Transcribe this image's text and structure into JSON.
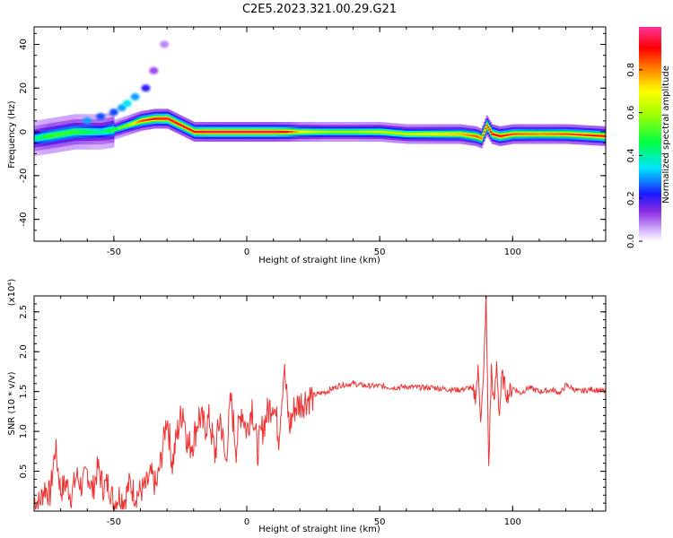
{
  "title": "C2E5.2023.321.00.29.G21",
  "colors": {
    "snr_line": "#ee3333",
    "axis": "#000000",
    "background": "#ffffff"
  },
  "chart_data": [
    {
      "type": "heatmap",
      "title": "C2E5.2023.321.00.29.G21",
      "xlabel": "Height of straight line (km)",
      "ylabel": "Frequency (Hz)",
      "xlim": [
        -80,
        135
      ],
      "ylim": [
        -50,
        48
      ],
      "xticks": [
        -50,
        0,
        50,
        100
      ],
      "xtick_labels": [
        "-50",
        "0",
        "50",
        "100"
      ],
      "yticks": [
        -40,
        -20,
        0,
        20,
        40
      ],
      "ytick_labels": [
        "-40",
        "-20",
        "0",
        "20",
        "40"
      ],
      "colorbar": {
        "label": "Normalized spectral amplitude",
        "range": [
          0,
          1
        ],
        "ticks": [
          0.0,
          0.2,
          0.4,
          0.6,
          0.8
        ],
        "tick_labels": [
          "0.0",
          "0.2",
          "0.4",
          "0.6",
          "0.8"
        ],
        "colormap": "rainbow (white-violet-blue-cyan-green-yellow-orange-red-magenta)"
      },
      "ridge": {
        "x": [
          -80,
          -75,
          -70,
          -65,
          -60,
          -55,
          -50,
          -45,
          -40,
          -35,
          -30,
          -25,
          -20,
          -15,
          -10,
          -5,
          0,
          5,
          10,
          15,
          20,
          30,
          40,
          50,
          60,
          70,
          80,
          86,
          88,
          90,
          92,
          95,
          100,
          110,
          120,
          135
        ],
        "y": [
          -3,
          -2,
          -1,
          0,
          0,
          0,
          1,
          3,
          5,
          6,
          6,
          3,
          0,
          0,
          0,
          0,
          0,
          0,
          0,
          0,
          0,
          0,
          0,
          0,
          -1,
          -1,
          -1,
          -2,
          -3,
          3,
          -1,
          -2,
          -1,
          -1,
          -1,
          -2
        ],
        "amplitude": [
          0.4,
          0.5,
          0.5,
          0.5,
          0.45,
          0.4,
          0.5,
          0.6,
          0.85,
          0.9,
          0.95,
          0.9,
          0.9,
          0.95,
          0.95,
          0.95,
          0.95,
          0.95,
          0.95,
          0.9,
          0.7,
          0.6,
          0.6,
          0.65,
          0.65,
          0.7,
          0.75,
          0.85,
          0.8,
          0.85,
          0.9,
          0.9,
          0.85,
          0.8,
          0.85,
          0.9
        ]
      },
      "side_trail": {
        "x": [
          -60,
          -55,
          -50,
          -47,
          -45,
          -42,
          -38,
          -35,
          -31
        ],
        "y": [
          5,
          7,
          9,
          11,
          13,
          16,
          20,
          28,
          40
        ],
        "amplitude": [
          0.3,
          0.25,
          0.25,
          0.3,
          0.35,
          0.3,
          0.2,
          0.12,
          0.08
        ]
      }
    },
    {
      "type": "line",
      "xlabel": "Height of straight line (km)",
      "ylabel": "SNR (10 * v/v)",
      "y_scale_label": "(x10⁴)",
      "xlim": [
        -80,
        135
      ],
      "ylim": [
        0,
        2.7
      ],
      "xticks": [
        -50,
        0,
        50,
        100
      ],
      "xtick_labels": [
        "-50",
        "0",
        "50",
        "100"
      ],
      "yticks": [
        0.5,
        1.0,
        1.5,
        2.0,
        2.5
      ],
      "ytick_labels": [
        "0.5",
        "1.0",
        "1.5",
        "2.0",
        "2.5"
      ],
      "series": [
        {
          "x": [
            -80,
            -78,
            -76,
            -74,
            -72,
            -70,
            -68,
            -66,
            -64,
            -62,
            -60,
            -58,
            -56,
            -54,
            -52,
            -50,
            -48,
            -46,
            -44,
            -42,
            -40,
            -38,
            -36,
            -34,
            -32,
            -30,
            -28,
            -26,
            -24,
            -22,
            -20,
            -18,
            -16,
            -14,
            -12,
            -10,
            -8,
            -6,
            -4,
            -2,
            0,
            2,
            4,
            6,
            8,
            10,
            12,
            14,
            16,
            18,
            20,
            22,
            25,
            30,
            35,
            40,
            45,
            50,
            55,
            60,
            65,
            70,
            75,
            80,
            84,
            86,
            87,
            88,
            89,
            90,
            91,
            92,
            93,
            94,
            95,
            96,
            98,
            100,
            103,
            106,
            110,
            115,
            118,
            120,
            125,
            130,
            135
          ],
          "y": [
            0.15,
            0.1,
            0.3,
            0.2,
            0.8,
            0.25,
            0.35,
            0.2,
            0.45,
            0.3,
            0.5,
            0.25,
            0.55,
            0.3,
            0.35,
            0.1,
            0.2,
            0.15,
            0.35,
            0.2,
            0.25,
            0.3,
            0.45,
            0.3,
            0.7,
            1.2,
            0.6,
            1.0,
            1.3,
            0.8,
            0.9,
            1.2,
            1.05,
            1.15,
            0.7,
            1.2,
            0.6,
            1.4,
            0.8,
            1.3,
            1.0,
            1.35,
            0.75,
            1.05,
            1.25,
            1.4,
            0.95,
            1.8,
            1.05,
            1.3,
            1.35,
            1.4,
            1.45,
            1.5,
            1.58,
            1.6,
            1.57,
            1.57,
            1.55,
            1.56,
            1.55,
            1.55,
            1.53,
            1.52,
            1.55,
            1.45,
            1.75,
            1.2,
            1.6,
            2.7,
            0.55,
            1.8,
            1.3,
            1.85,
            1.2,
            1.7,
            1.45,
            1.55,
            1.48,
            1.55,
            1.5,
            1.52,
            1.48,
            1.58,
            1.5,
            1.53,
            1.5
          ]
        }
      ]
    }
  ]
}
